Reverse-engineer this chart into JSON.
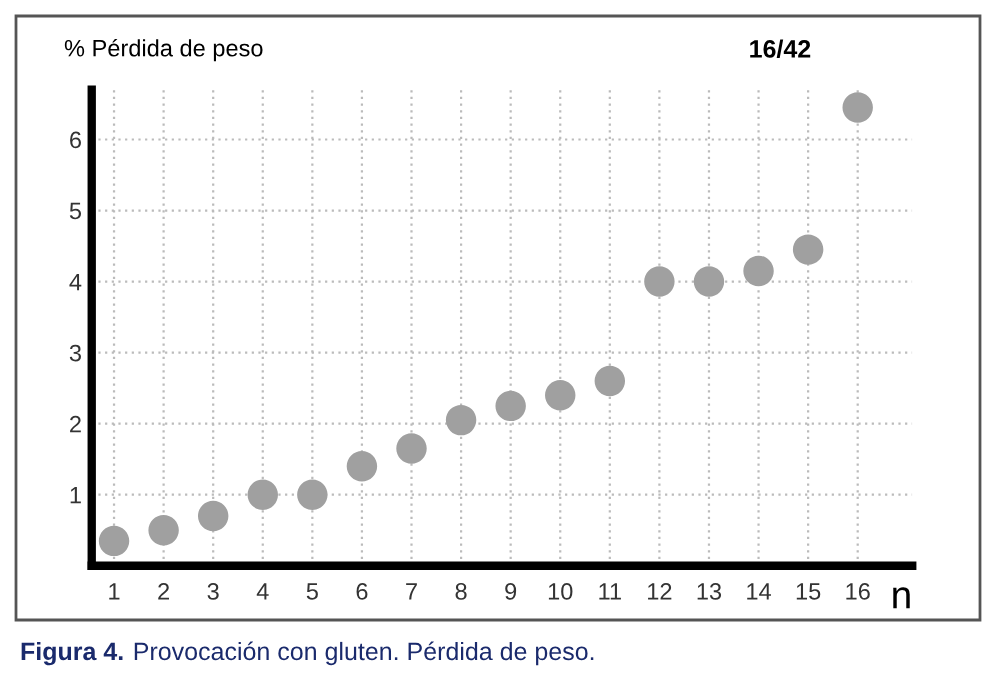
{
  "chart_data": {
    "type": "scatter",
    "ylabel": "% Pérdida de peso",
    "xlabel": "n",
    "categories": [
      "1",
      "2",
      "3",
      "4",
      "5",
      "6",
      "7",
      "8",
      "9",
      "10",
      "11",
      "12",
      "13",
      "14",
      "15",
      "16"
    ],
    "series": [
      {
        "color": "#a0a0a0",
        "values": [
          0.35,
          0.5,
          0.7,
          1,
          1,
          1.4,
          1.65,
          2.05,
          2.25,
          2.4,
          2.6,
          4,
          4,
          4.15,
          4.45,
          6.45
        ]
      }
    ],
    "ylim": [
      0,
      6.7
    ],
    "yticks": [
      {
        "value": 0,
        "label": null
      },
      1,
      2,
      3,
      4,
      5,
      6
    ],
    "grid": true,
    "marker": "circle",
    "annotations": [
      {
        "text": "16/42",
        "x": "16",
        "y": 6.45
      },
      "Figura 4.",
      "Provocación con gluten. Pérdida de peso."
    ]
  }
}
